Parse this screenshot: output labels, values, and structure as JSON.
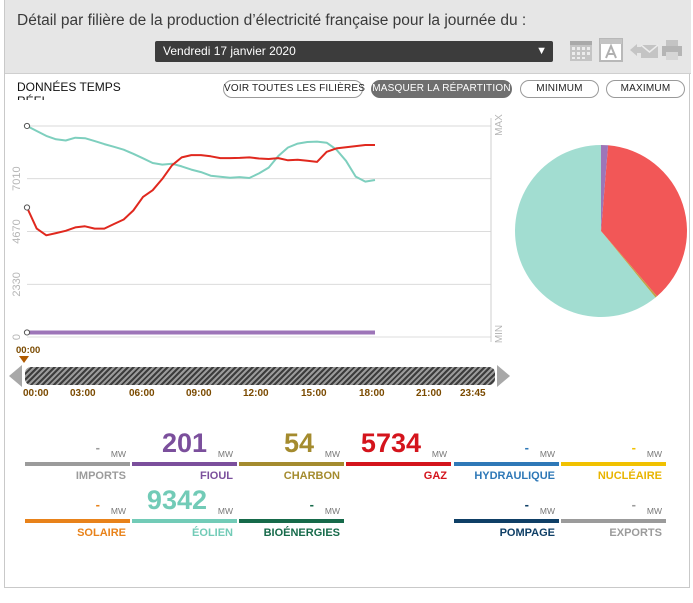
{
  "header": {
    "title": "Détail par filière de la production d’électricité française pour la journée du :",
    "date_value": "Vendredi 17 janvier 2020",
    "icons": [
      "calendar-icon",
      "text-a-icon",
      "email-share-icon",
      "print-icon"
    ]
  },
  "toolbar": {
    "realtime_label": "DONNÉES TEMPS RÉEL",
    "buttons": {
      "all": "VOIR TOUTES LES FILIÈRES",
      "hide": "MASQUER LA RÉPARTITION",
      "min": "MINIMUM",
      "max": "MAXIMUM"
    }
  },
  "chart_data": [
    {
      "type": "line",
      "x_unit": "hour",
      "ylim": [
        0,
        9340
      ],
      "y_ticks": [
        "0",
        "2330",
        "4670",
        "7010"
      ],
      "y_right_labels": {
        "top": "MAX",
        "bottom": "MIN"
      },
      "grid": true,
      "legend": "none",
      "series": [
        {
          "color": "#7ecfbe",
          "x": [
            0,
            0.5,
            1,
            1.5,
            2,
            2.5,
            3,
            3.5,
            4,
            4.5,
            5,
            5.5,
            6,
            6.5,
            7,
            7.5,
            8,
            8.5,
            9,
            9.5,
            10,
            10.5,
            11,
            11.5,
            12,
            12.5,
            13,
            13.5,
            14,
            14.5,
            15,
            15.5,
            16,
            16.5,
            17,
            17.5,
            18
          ],
          "y": [
            9342,
            9120,
            8900,
            8750,
            8700,
            8820,
            8800,
            8670,
            8540,
            8420,
            8290,
            8110,
            7910,
            7700,
            7630,
            7670,
            7550,
            7410,
            7300,
            7140,
            7090,
            7050,
            7080,
            7040,
            7240,
            7500,
            8010,
            8390,
            8560,
            8630,
            8650,
            8600,
            8300,
            7800,
            7100,
            6880,
            6950
          ]
        },
        {
          "color": "#e0281e",
          "x": [
            0,
            0.5,
            1,
            1.5,
            2,
            2.5,
            3,
            3.5,
            4,
            4.5,
            5,
            5.5,
            6,
            6.5,
            7,
            7.5,
            8,
            8.5,
            9,
            9.5,
            10,
            10.5,
            11,
            11.5,
            12,
            12.5,
            13,
            13.5,
            14,
            14.5,
            15,
            15.5,
            16,
            16.5,
            17,
            17.5,
            18
          ],
          "y": [
            5734,
            4800,
            4500,
            4600,
            4700,
            4850,
            4900,
            4800,
            4800,
            5000,
            5200,
            5600,
            6200,
            6500,
            7000,
            7600,
            7950,
            8050,
            8050,
            8000,
            7920,
            7920,
            7930,
            7950,
            7900,
            7880,
            7920,
            7820,
            7850,
            7800,
            7750,
            8200,
            8350,
            8400,
            8450,
            8500,
            8500
          ]
        },
        {
          "color": "#9d75b8",
          "x": [
            0,
            18
          ],
          "y": [
            201,
            201
          ]
        }
      ]
    },
    {
      "type": "pie",
      "values": [
        9342,
        5734,
        201,
        54
      ],
      "colors": [
        "#a2ddd1",
        "#f25757",
        "#9d75b8",
        "#c0a347"
      ]
    }
  ],
  "timeline": {
    "cursor_label": "00:00",
    "ticks": [
      "00:00",
      "03:00",
      "06:00",
      "09:00",
      "12:00",
      "15:00",
      "18:00",
      "21:00",
      "23:45"
    ]
  },
  "sources": [
    {
      "key": "imports",
      "label": "IMPORTS",
      "value": "-",
      "unit": "MW",
      "color": "#9b9b9b",
      "label_color": "#9b9b9b"
    },
    {
      "key": "fioul",
      "label": "FIOUL",
      "value": "201",
      "unit": "MW",
      "color": "#7b4f9c",
      "label_color": "#7b4f9c"
    },
    {
      "key": "charbon",
      "label": "CHARBON",
      "value": "54",
      "unit": "MW",
      "color": "#a48b2e",
      "label_color": "#a48b2e"
    },
    {
      "key": "gaz",
      "label": "GAZ",
      "value": "5734",
      "unit": "MW",
      "color": "#d4141c",
      "label_color": "#d4141c"
    },
    {
      "key": "hydraulique",
      "label": "HYDRAULIQUE",
      "value": "-",
      "unit": "MW",
      "color": "#2e78b7",
      "label_color": "#2e78b7"
    },
    {
      "key": "nucleaire",
      "label": "NUCLÉAIRE",
      "value": "-",
      "unit": "MW",
      "color": "#f1c100",
      "label_color": "#e8b400"
    },
    {
      "key": "solaire",
      "label": "SOLAIRE",
      "value": "-",
      "unit": "MW",
      "color": "#e8821a",
      "label_color": "#e8821a"
    },
    {
      "key": "eolien",
      "label": "ÉOLIEN",
      "value": "9342",
      "unit": "MW",
      "color": "#72cbb7",
      "label_color": "#72cbb7"
    },
    {
      "key": "bioenergies",
      "label": "BIOÉNERGIES",
      "value": "-",
      "unit": "MW",
      "color": "#166a4a",
      "label_color": "#166a4a"
    },
    {
      "key": "pompage",
      "label": "POMPAGE",
      "value": "-",
      "unit": "MW",
      "color": "#0f3f66",
      "label_color": "#0f3f66"
    },
    {
      "key": "exports",
      "label": "EXPORTS",
      "value": "-",
      "unit": "MW",
      "color": "#9b9b9b",
      "label_color": "#9b9b9b"
    }
  ]
}
